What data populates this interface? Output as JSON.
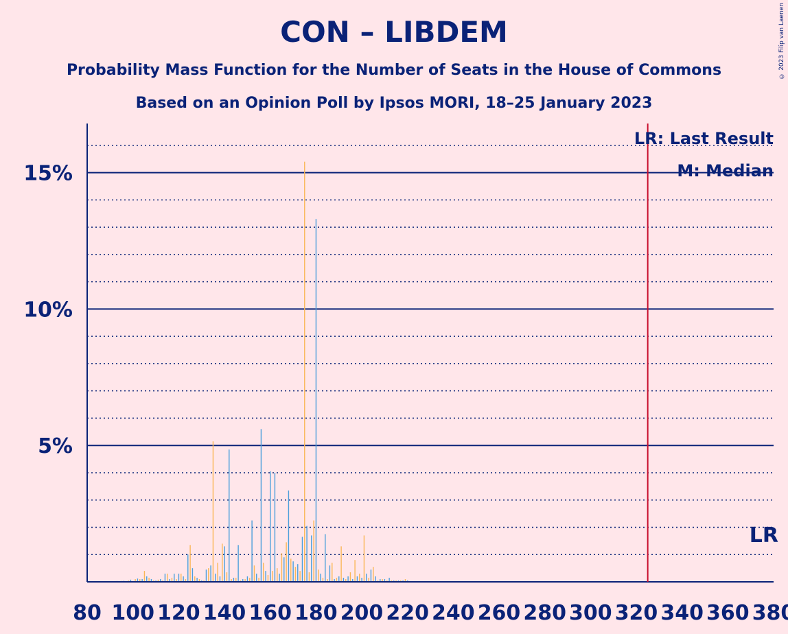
{
  "chart_data": {
    "type": "bar",
    "title": "CON – LIBDEM",
    "subtitle": "Probability Mass Function for the Number of Seats in the House of Commons",
    "subtitle2": "Based on an Opinion Poll by Ipsos MORI, 18–25 January 2023",
    "copyright": "© 2023 Filip van Laenen",
    "xlim": [
      80,
      380
    ],
    "ylim": [
      0,
      16.8
    ],
    "x_ticks": [
      80,
      100,
      120,
      140,
      160,
      180,
      200,
      220,
      240,
      260,
      280,
      300,
      320,
      340,
      360,
      380
    ],
    "y_ticks": [
      {
        "value": 5,
        "label": "5%"
      },
      {
        "value": 10,
        "label": "10%"
      },
      {
        "value": 15,
        "label": "15%"
      }
    ],
    "grid": "solid at labelled ticks, dotted every 1%",
    "last_result": 325,
    "last_result_label": "LR",
    "median": 175,
    "legend": {
      "position": "top-right",
      "lr_text": "LR: Last Result",
      "m_text": "M: Median"
    },
    "colors": {
      "background": "#FFE6EA",
      "text": "#0A2277",
      "grid": "#0A2277",
      "last_result_line": "#C8102E",
      "bar_a": "#FAB757",
      "bar_b": "#4B9FDB"
    },
    "series": [
      {
        "color": "#FAB757",
        "x": [
          92,
          95,
          98,
          101,
          103,
          105,
          107,
          109,
          111,
          113,
          115,
          117,
          119,
          121,
          123,
          125,
          127,
          129,
          131,
          133,
          135,
          137,
          139,
          141,
          143,
          145,
          147,
          149,
          151,
          153,
          155,
          157,
          159,
          161,
          163,
          165,
          167,
          169,
          171,
          173,
          175,
          177,
          179,
          181,
          183,
          185,
          187,
          189,
          191,
          193,
          195,
          197,
          199,
          201,
          203,
          205,
          207,
          209,
          211,
          213,
          215,
          217,
          219
        ],
        "values": [
          0.02,
          0.03,
          0.05,
          0.1,
          0.1,
          0.4,
          0.15,
          0.05,
          0.08,
          0.05,
          0.3,
          0.15,
          0.1,
          0.3,
          0.1,
          1.35,
          0.2,
          0.1,
          0.05,
          0.5,
          5.15,
          0.7,
          1.4,
          0.35,
          0.1,
          0.15,
          0.05,
          0.1,
          0.15,
          0.6,
          0.15,
          0.7,
          0.25,
          0.4,
          0.5,
          1.05,
          1.45,
          0.85,
          0.55,
          0.4,
          15.4,
          0.35,
          2.25,
          0.45,
          0.15,
          0.1,
          0.7,
          0.15,
          1.3,
          0.1,
          0.35,
          0.8,
          0.3,
          1.7,
          0.15,
          0.55,
          0.05,
          0.1,
          0.05,
          0.05,
          0.05,
          0.05,
          0.1
        ]
      },
      {
        "color": "#4B9FDB",
        "x": [
          93,
          96,
          99,
          102,
          104,
          106,
          108,
          110,
          112,
          114,
          116,
          118,
          120,
          122,
          124,
          126,
          128,
          130,
          132,
          134,
          136,
          138,
          140,
          142,
          144,
          146,
          148,
          150,
          152,
          154,
          156,
          158,
          160,
          162,
          164,
          166,
          168,
          170,
          172,
          174,
          176,
          178,
          180,
          182,
          184,
          186,
          188,
          190,
          192,
          194,
          196,
          198,
          200,
          202,
          204,
          206,
          208,
          210,
          212,
          214,
          216,
          218,
          220
        ],
        "values": [
          0.03,
          0.04,
          0.08,
          0.12,
          0.1,
          0.2,
          0.1,
          0.05,
          0.1,
          0.3,
          0.1,
          0.3,
          0.3,
          0.2,
          1.0,
          0.5,
          0.15,
          0.05,
          0.45,
          0.6,
          0.3,
          0.2,
          1.3,
          4.85,
          0.15,
          1.35,
          0.1,
          0.2,
          2.25,
          0.3,
          5.6,
          0.4,
          4.05,
          4.0,
          0.3,
          0.9,
          3.35,
          0.75,
          0.65,
          1.65,
          2.05,
          1.7,
          13.3,
          0.3,
          1.75,
          0.6,
          0.1,
          0.2,
          0.15,
          0.2,
          0.1,
          0.2,
          0.15,
          0.3,
          0.45,
          0.2,
          0.1,
          0.1,
          0.15,
          0.05,
          0.05,
          0.05,
          0.05
        ]
      }
    ]
  }
}
